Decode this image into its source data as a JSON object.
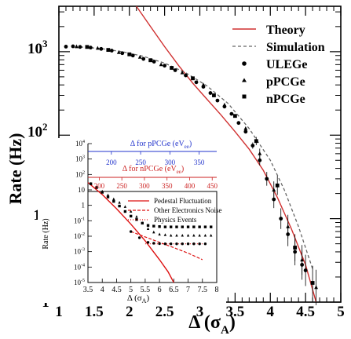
{
  "chart_data": [
    {
      "type": "scatter",
      "x_axis": {
        "label_main": "Δ (σ",
        "label_sub": "A",
        "label_close": ")",
        "range": [
          1,
          5
        ],
        "ticks": [
          "1",
          "1.5",
          "2",
          "2.5",
          "3",
          "3.5",
          "4",
          "4.5",
          "5"
        ]
      },
      "y_axis": {
        "label": "Rate (Hz)",
        "scale": "log",
        "range": [
          1,
          3500
        ],
        "tick_base": "10",
        "tick_exponents": [
          "",
          "2",
          "3"
        ],
        "tick_labels_plain": [
          "1",
          "10"
        ]
      },
      "legend": {
        "placement": "top-right",
        "entries": [
          {
            "label": "Theory",
            "style": "line",
            "color": "#d03030"
          },
          {
            "label": "Simulation",
            "style": "dashed",
            "color": "#666666"
          },
          {
            "label": "ULEGe",
            "style": "circle"
          },
          {
            "label": "pPCGe",
            "style": "triangle"
          },
          {
            "label": "nPCGe",
            "style": "square"
          }
        ]
      },
      "series": [
        {
          "name": "ULEGe",
          "marker": "circle",
          "points": [
            [
              1.1,
              1150
            ],
            [
              1.2,
              1160
            ],
            [
              1.3,
              1140
            ],
            [
              1.45,
              1120
            ],
            [
              1.6,
              1080
            ],
            [
              1.75,
              1030
            ],
            [
              1.9,
              960
            ],
            [
              2.05,
              900
            ],
            [
              2.2,
              820
            ],
            [
              2.35,
              760
            ],
            [
              2.5,
              680
            ],
            [
              2.65,
              600
            ],
            [
              2.8,
              520
            ],
            [
              2.95,
              430
            ],
            [
              3.05,
              380
            ],
            [
              3.15,
              320
            ],
            [
              3.25,
              260
            ],
            [
              3.35,
              220
            ],
            [
              3.45,
              180
            ],
            [
              3.55,
              140
            ],
            [
              3.65,
              110
            ],
            [
              3.75,
              75
            ],
            [
              3.85,
              50
            ],
            [
              3.95,
              30
            ],
            [
              4.05,
              17
            ],
            [
              4.15,
              10
            ],
            [
              4.25,
              6.5
            ],
            [
              4.35,
              4
            ],
            [
              4.45,
              2.8
            ],
            [
              4.5,
              2.4
            ]
          ]
        },
        {
          "name": "pPCGe",
          "marker": "triangle",
          "points": [
            [
              1.25,
              1150
            ],
            [
              1.55,
              1100
            ],
            [
              1.85,
              980
            ],
            [
              2.15,
              860
            ],
            [
              2.45,
              700
            ],
            [
              2.75,
              560
            ],
            [
              3.05,
              400
            ],
            [
              3.35,
              230
            ],
            [
              3.65,
              120
            ],
            [
              3.85,
              60
            ],
            [
              4.05,
              22
            ],
            [
              4.25,
              8
            ],
            [
              4.45,
              3.2
            ],
            [
              4.65,
              1.5
            ]
          ]
        },
        {
          "name": "nPCGe",
          "marker": "square",
          "points": [
            [
              1.4,
              1140
            ],
            [
              1.7,
              1050
            ],
            [
              2.0,
              930
            ],
            [
              2.3,
              790
            ],
            [
              2.6,
              640
            ],
            [
              2.9,
              480
            ],
            [
              3.2,
              300
            ],
            [
              3.5,
              170
            ],
            [
              3.8,
              85
            ],
            [
              4.1,
              25
            ],
            [
              4.35,
              4.5
            ],
            [
              4.6,
              1.7
            ]
          ]
        }
      ],
      "theory_curve": [
        [
          2.1,
          3500
        ],
        [
          2.3,
          2000
        ],
        [
          2.5,
          1150
        ],
        [
          2.7,
          680
        ],
        [
          2.9,
          420
        ],
        [
          3.1,
          270
        ],
        [
          3.3,
          175
        ],
        [
          3.5,
          110
        ],
        [
          3.7,
          68
        ],
        [
          3.9,
          38
        ],
        [
          4.1,
          18
        ],
        [
          4.3,
          7.5
        ],
        [
          4.5,
          2.8
        ],
        [
          4.65,
          1.0
        ]
      ],
      "simulation_curve": [
        [
          1.3,
          1140
        ],
        [
          1.6,
          1090
        ],
        [
          1.9,
          1000
        ],
        [
          2.2,
          880
        ],
        [
          2.5,
          730
        ],
        [
          2.8,
          560
        ],
        [
          3.1,
          390
        ],
        [
          3.4,
          240
        ],
        [
          3.7,
          120
        ],
        [
          4.0,
          50
        ],
        [
          4.2,
          22
        ],
        [
          4.4,
          8
        ],
        [
          4.6,
          2.5
        ]
      ]
    },
    {
      "type": "scatter",
      "x_axis": {
        "label_main": "Δ (σ",
        "label_sub": "A",
        "label_close": ")",
        "range": [
          3.5,
          8
        ],
        "ticks": [
          "3.5",
          "4",
          "4.5",
          "5",
          "5.5",
          "6",
          "6.5",
          "7",
          "7.5",
          "8"
        ]
      },
      "top_axis_1": {
        "label": "Δ for pPCGe (eV",
        "label_sub": "ee",
        "label_close": ")",
        "color": "#2233cc",
        "ticks": [
          "200",
          "250",
          "300",
          "350"
        ]
      },
      "top_axis_2": {
        "label": "Δ for nPCGe (eV",
        "label_sub": "ee",
        "label_close": ")",
        "color": "#cc2222",
        "ticks": [
          "200",
          "250",
          "300",
          "350",
          "400",
          "450"
        ]
      },
      "y_axis": {
        "label": "Rate (Hz)",
        "scale": "log",
        "range": [
          1e-05,
          10000.0
        ],
        "tick_base": "10",
        "tick_exponents": [
          "4",
          "3",
          "2",
          "",
          "",
          "-1",
          "-2",
          "-3",
          "-4",
          "-5"
        ],
        "tick_labels_plain": [
          "10",
          "1"
        ]
      },
      "legend": {
        "placement": "top-right",
        "entries": [
          {
            "label": "Pedestal Fluctuation",
            "style": "line",
            "color": "#dd1111"
          },
          {
            "label": "Other Electronics Noise",
            "style": "dashed",
            "color": "#dd1111"
          },
          {
            "label": "Physics Events",
            "style": "dotted",
            "color": "#dd1111"
          }
        ]
      },
      "series": [
        {
          "name": "pPCGe",
          "marker": "triangle",
          "points": [
            [
              3.6,
              25
            ],
            [
              3.8,
              15
            ],
            [
              4.0,
              8
            ],
            [
              4.2,
              4.5
            ],
            [
              4.4,
              2.5
            ],
            [
              4.6,
              1.5
            ],
            [
              4.8,
              0.8
            ],
            [
              5.0,
              0.4
            ],
            [
              5.2,
              0.18
            ],
            [
              5.4,
              0.07
            ],
            [
              5.6,
              0.03
            ],
            [
              5.8,
              0.018
            ],
            [
              6.0,
              0.013
            ],
            [
              6.2,
              0.012
            ],
            [
              6.4,
              0.011
            ],
            [
              6.6,
              0.011
            ],
            [
              6.8,
              0.011
            ],
            [
              7.0,
              0.011
            ],
            [
              7.2,
              0.011
            ],
            [
              7.4,
              0.011
            ],
            [
              7.6,
              0.011
            ],
            [
              7.8,
              0.011
            ]
          ]
        },
        {
          "name": "ULEGe",
          "marker": "square",
          "points": [
            [
              3.6,
              25
            ],
            [
              3.8,
              14
            ],
            [
              4.0,
              7
            ],
            [
              4.2,
              3.5
            ],
            [
              4.4,
              1.8
            ],
            [
              4.6,
              0.9
            ],
            [
              4.8,
              0.4
            ],
            [
              5.0,
              0.2
            ],
            [
              5.2,
              0.12
            ],
            [
              5.4,
              0.07
            ],
            [
              5.6,
              0.05
            ],
            [
              5.8,
              0.045
            ],
            [
              6.0,
              0.042
            ],
            [
              6.2,
              0.04
            ],
            [
              6.4,
              0.04
            ],
            [
              6.6,
              0.04
            ],
            [
              6.8,
              0.04
            ],
            [
              7.0,
              0.04
            ],
            [
              7.2,
              0.04
            ],
            [
              7.4,
              0.04
            ],
            [
              7.6,
              0.04
            ],
            [
              7.8,
              0.04
            ]
          ]
        },
        {
          "name": "nPCGe",
          "marker": "circle",
          "points": [
            [
              5.0,
              0.02
            ],
            [
              5.3,
              0.008
            ],
            [
              5.6,
              0.004
            ],
            [
              5.8,
              0.0035
            ],
            [
              6.0,
              0.0033
            ],
            [
              6.2,
              0.0032
            ],
            [
              6.4,
              0.0032
            ],
            [
              6.6,
              0.0032
            ],
            [
              6.8,
              0.0032
            ],
            [
              7.0,
              0.0032
            ],
            [
              7.2,
              0.0032
            ],
            [
              7.4,
              0.0032
            ],
            [
              7.6,
              0.0032
            ]
          ]
        }
      ],
      "pedestal_curve": [
        [
          3.5,
          30
        ],
        [
          4.0,
          5
        ],
        [
          4.5,
          0.6
        ],
        [
          5.0,
          0.06
        ],
        [
          5.5,
          0.005
        ],
        [
          6.0,
          0.0003
        ],
        [
          6.3,
          5e-05
        ],
        [
          6.5,
          1e-05
        ]
      ],
      "electronics_curve": [
        [
          5.0,
          0.02
        ],
        [
          5.5,
          0.009
        ],
        [
          6.0,
          0.004
        ],
        [
          6.5,
          0.0018
        ],
        [
          7.0,
          0.0008
        ],
        [
          7.5,
          0.0003
        ]
      ],
      "physics_curve": [
        [
          5.5,
          0.0032
        ],
        [
          6.0,
          0.0032
        ],
        [
          6.5,
          0.0032
        ],
        [
          7.0,
          0.0032
        ],
        [
          7.5,
          0.0032
        ]
      ]
    }
  ]
}
